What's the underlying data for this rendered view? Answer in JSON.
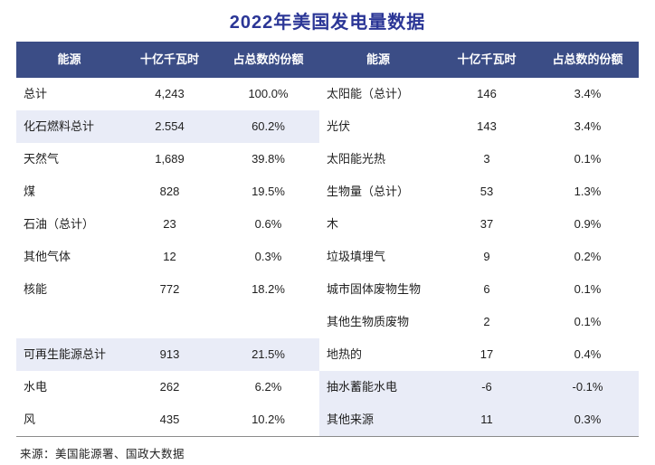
{
  "title": "2022年美国发电量数据",
  "footer": {
    "source": "来源：美国能源署、国政大数据"
  },
  "colors": {
    "header_bg": "#3b4d86",
    "title_text": "#2b3696",
    "row_highlight": "#e9ecf7",
    "table_border": "#8b8b8b"
  },
  "chart_data": {
    "type": "table",
    "title": "2022年美国发电量数据",
    "headers": [
      "能源",
      "十亿千瓦时",
      "占总数的份额",
      "能源",
      "十亿千瓦时",
      "占总数的份额"
    ],
    "rows": [
      {
        "left": {
          "name": "总计",
          "value": "4,243",
          "share": "100.0%",
          "highlight": false
        },
        "right": {
          "name": "太阳能（总计）",
          "value": "146",
          "share": "3.4%",
          "highlight": false
        }
      },
      {
        "left": {
          "name": "化石燃料总计",
          "value": "2.554",
          "share": "60.2%",
          "highlight": true
        },
        "right": {
          "name": "光伏",
          "value": "143",
          "share": "3.4%",
          "highlight": false
        }
      },
      {
        "left": {
          "name": "天然气",
          "value": "1,689",
          "share": "39.8%",
          "highlight": false
        },
        "right": {
          "name": "太阳能光热",
          "value": "3",
          "share": "0.1%",
          "highlight": false
        }
      },
      {
        "left": {
          "name": "煤",
          "value": "828",
          "share": "19.5%",
          "highlight": false
        },
        "right": {
          "name": "生物量（总计）",
          "value": "53",
          "share": "1.3%",
          "highlight": false
        }
      },
      {
        "left": {
          "name": "石油（总计）",
          "value": "23",
          "share": "0.6%",
          "highlight": false
        },
        "right": {
          "name": "木",
          "value": "37",
          "share": "0.9%",
          "highlight": false
        }
      },
      {
        "left": {
          "name": "其他气体",
          "value": "12",
          "share": "0.3%",
          "highlight": false
        },
        "right": {
          "name": "垃圾填埋气",
          "value": "9",
          "share": "0.2%",
          "highlight": false
        }
      },
      {
        "left": {
          "name": "核能",
          "value": "772",
          "share": "18.2%",
          "highlight": false
        },
        "right": {
          "name": "城市固体废物生物",
          "value": "6",
          "share": "0.1%",
          "highlight": false
        }
      },
      {
        "left": {
          "name": "",
          "value": "",
          "share": "",
          "highlight": false
        },
        "right": {
          "name": "其他生物质废物",
          "value": "2",
          "share": "0.1%",
          "highlight": false
        }
      },
      {
        "left": {
          "name": "可再生能源总计",
          "value": "913",
          "share": "21.5%",
          "highlight": true
        },
        "right": {
          "name": "地热的",
          "value": "17",
          "share": "0.4%",
          "highlight": false
        }
      },
      {
        "left": {
          "name": "水电",
          "value": "262",
          "share": "6.2%",
          "highlight": false
        },
        "right": {
          "name": "抽水蓄能水电",
          "value": "-6",
          "share": "-0.1%",
          "highlight": true
        }
      },
      {
        "left": {
          "name": "风",
          "value": "435",
          "share": "10.2%",
          "highlight": false
        },
        "right": {
          "name": "其他来源",
          "value": "11",
          "share": "0.3%",
          "highlight": true
        }
      }
    ],
    "source": "来源：美国能源署、国政大数据"
  }
}
